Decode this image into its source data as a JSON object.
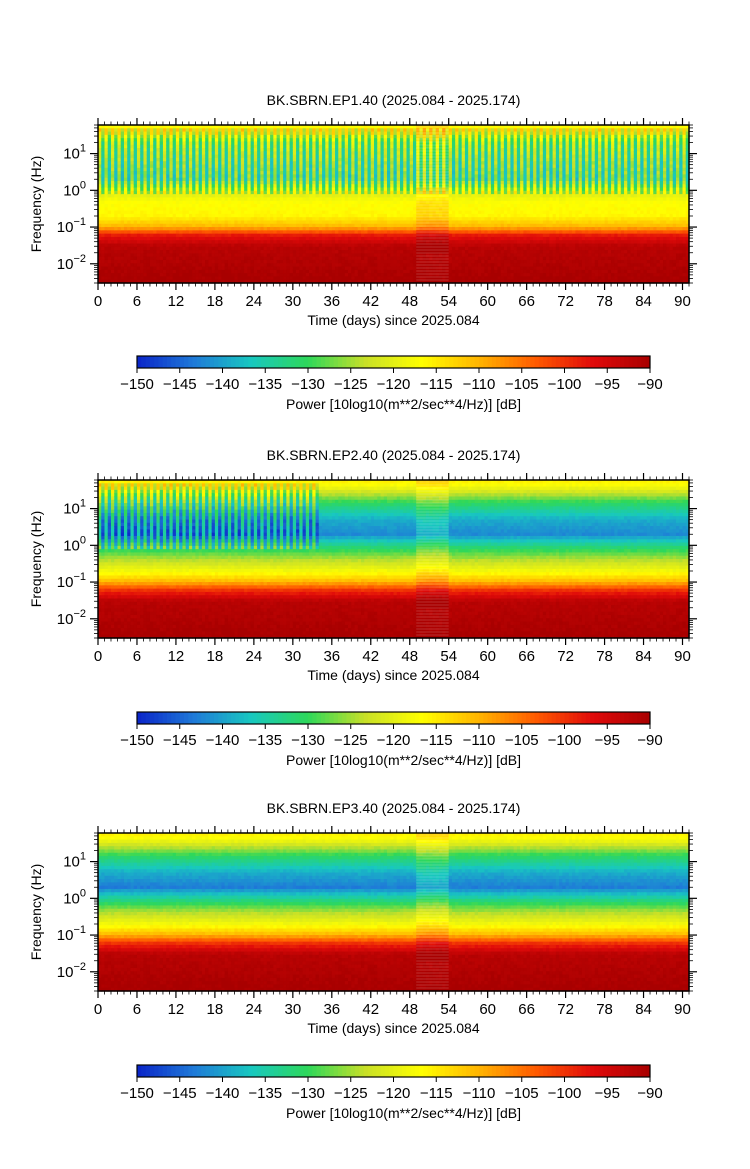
{
  "colors": {
    "colormap": [
      "#0a24c8",
      "#1f7ad8",
      "#18c8c0",
      "#2ed85a",
      "#c8e028",
      "#ffff00",
      "#ffb400",
      "#ff5a00",
      "#e00a0a",
      "#a80000"
    ],
    "frame": "#000000",
    "gap_fill": "#d9d9c8"
  },
  "chart_data": [
    {
      "type": "heatmap",
      "title": "BK.SBRN.EP1.40 (2025.084 - 2025.174)",
      "xlabel": "Time (days) since 2025.084",
      "ylabel": "Frequency (Hz)",
      "x_scale": "linear",
      "y_scale": "log",
      "xlim": [
        0,
        91
      ],
      "ylim": [
        0.003,
        60
      ],
      "x_ticks": [
        "0",
        "6",
        "12",
        "18",
        "24",
        "30",
        "36",
        "42",
        "48",
        "54",
        "60",
        "66",
        "72",
        "78",
        "84",
        "90"
      ],
      "y_ticks": [
        "10^-2",
        "10^-1",
        "10^0",
        "10^1"
      ],
      "data_gap_days": [
        49,
        54
      ],
      "variable_band_days": [
        [
          0,
          91
        ]
      ],
      "profile": [
        {
          "freq_hz": 0.003,
          "power_db": -90
        },
        {
          "freq_hz": 0.03,
          "power_db": -92
        },
        {
          "freq_hz": 0.06,
          "power_db": -98
        },
        {
          "freq_hz": 0.1,
          "power_db": -110
        },
        {
          "freq_hz": 0.2,
          "power_db": -116
        },
        {
          "freq_hz": 0.5,
          "power_db": -117
        },
        {
          "freq_hz": 1.0,
          "power_db": -122
        },
        {
          "freq_hz": 2.0,
          "power_db": -131
        },
        {
          "freq_hz": 5.0,
          "power_db": -130
        },
        {
          "freq_hz": 20,
          "power_db": -126
        },
        {
          "freq_hz": 40,
          "power_db": -118
        },
        {
          "freq_hz": 60,
          "power_db": -116
        }
      ],
      "colorbar": {
        "label": "Power [10log10(m**2/sec**4/Hz)] [dB]",
        "range": [
          -150,
          -90
        ],
        "ticks": [
          "−150",
          "−145",
          "−140",
          "−135",
          "−130",
          "−125",
          "−120",
          "−115",
          "−110",
          "−105",
          "−100",
          "−95",
          "−90"
        ]
      }
    },
    {
      "type": "heatmap",
      "title": "BK.SBRN.EP2.40 (2025.084 - 2025.174)",
      "xlabel": "Time (days) since 2025.084",
      "ylabel": "Frequency (Hz)",
      "x_scale": "linear",
      "y_scale": "log",
      "xlim": [
        0,
        91
      ],
      "ylim": [
        0.003,
        60
      ],
      "x_ticks": [
        "0",
        "6",
        "12",
        "18",
        "24",
        "30",
        "36",
        "42",
        "48",
        "54",
        "60",
        "66",
        "72",
        "78",
        "84",
        "90"
      ],
      "y_ticks": [
        "10^-2",
        "10^-1",
        "10^0",
        "10^1"
      ],
      "data_gap_days": [
        49,
        54
      ],
      "variable_band_days": [
        [
          0,
          34
        ]
      ],
      "profile": [
        {
          "freq_hz": 0.003,
          "power_db": -90
        },
        {
          "freq_hz": 0.03,
          "power_db": -92
        },
        {
          "freq_hz": 0.06,
          "power_db": -100
        },
        {
          "freq_hz": 0.1,
          "power_db": -110
        },
        {
          "freq_hz": 0.2,
          "power_db": -118
        },
        {
          "freq_hz": 0.5,
          "power_db": -126
        },
        {
          "freq_hz": 1.0,
          "power_db": -133
        },
        {
          "freq_hz": 2.0,
          "power_db": -142
        },
        {
          "freq_hz": 5.0,
          "power_db": -139
        },
        {
          "freq_hz": 15,
          "power_db": -130
        },
        {
          "freq_hz": 40,
          "power_db": -118
        },
        {
          "freq_hz": 60,
          "power_db": -115
        }
      ],
      "colorbar": {
        "label": "Power [10log10(m**2/sec**4/Hz)] [dB]",
        "range": [
          -150,
          -90
        ],
        "ticks": [
          "−150",
          "−145",
          "−140",
          "−135",
          "−130",
          "−125",
          "−120",
          "−115",
          "−110",
          "−105",
          "−100",
          "−95",
          "−90"
        ]
      }
    },
    {
      "type": "heatmap",
      "title": "BK.SBRN.EP3.40 (2025.084 - 2025.174)",
      "xlabel": "Time (days) since 2025.084",
      "ylabel": "Frequency (Hz)",
      "x_scale": "linear",
      "y_scale": "log",
      "xlim": [
        0,
        91
      ],
      "ylim": [
        0.003,
        60
      ],
      "x_ticks": [
        "0",
        "6",
        "12",
        "18",
        "24",
        "30",
        "36",
        "42",
        "48",
        "54",
        "60",
        "66",
        "72",
        "78",
        "84",
        "90"
      ],
      "y_ticks": [
        "10^-2",
        "10^-1",
        "10^0",
        "10^1"
      ],
      "data_gap_days": [
        49,
        54
      ],
      "variable_band_days": [],
      "profile": [
        {
          "freq_hz": 0.003,
          "power_db": -90
        },
        {
          "freq_hz": 0.03,
          "power_db": -92
        },
        {
          "freq_hz": 0.06,
          "power_db": -100
        },
        {
          "freq_hz": 0.1,
          "power_db": -110
        },
        {
          "freq_hz": 0.2,
          "power_db": -118
        },
        {
          "freq_hz": 0.5,
          "power_db": -126
        },
        {
          "freq_hz": 1.0,
          "power_db": -134
        },
        {
          "freq_hz": 2.0,
          "power_db": -143
        },
        {
          "freq_hz": 5.0,
          "power_db": -139
        },
        {
          "freq_hz": 15,
          "power_db": -130
        },
        {
          "freq_hz": 40,
          "power_db": -118
        },
        {
          "freq_hz": 60,
          "power_db": -115
        }
      ],
      "colorbar": {
        "label": "Power [10log10(m**2/sec**4/Hz)] [dB]",
        "range": [
          -150,
          -90
        ],
        "ticks": [
          "−150",
          "−145",
          "−140",
          "−135",
          "−130",
          "−125",
          "−120",
          "−115",
          "−110",
          "−105",
          "−100",
          "−95",
          "−90"
        ]
      }
    }
  ]
}
